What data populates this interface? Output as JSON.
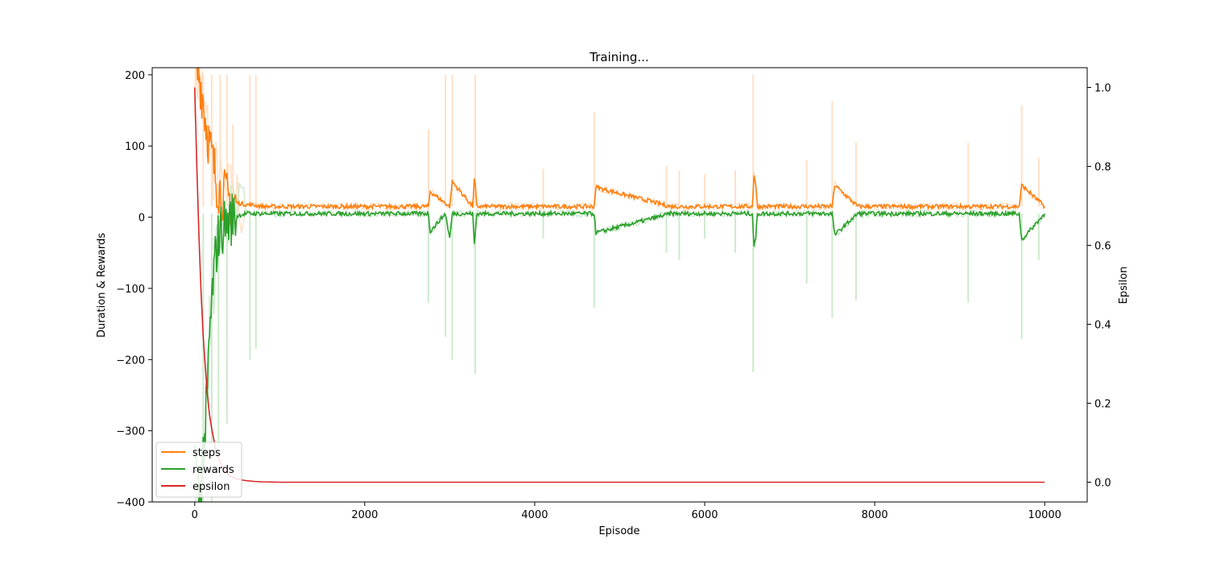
{
  "chart_data": {
    "type": "line",
    "title": "Training...",
    "xlabel": "Episode",
    "ylabel": "Duration & Rewards",
    "y2label": "Epsilon",
    "xlim": [
      -500,
      10500
    ],
    "ylim": [
      -400,
      210
    ],
    "y2lim": [
      -0.05,
      1.05
    ],
    "xticks": [
      "0",
      "2000",
      "4000",
      "6000",
      "8000",
      "10000"
    ],
    "yticks": [
      "200",
      "100",
      "0",
      "−100",
      "−200",
      "−300",
      "−400"
    ],
    "y2ticks": [
      "1.0",
      "0.8",
      "0.6",
      "0.4",
      "0.2",
      "0.0"
    ],
    "legend_position": "lower-left",
    "grid": false,
    "series": [
      {
        "name": "steps",
        "axis": "left",
        "color": "#ff7f0e",
        "raw_color": "#ffe0c7",
        "x": [
          0,
          25,
          50,
          75,
          100,
          125,
          150,
          175,
          200,
          225,
          250,
          275,
          300,
          350,
          400,
          450,
          500,
          600,
          700,
          800,
          1000,
          2000,
          2750,
          2770,
          3000,
          3030,
          3270,
          3290,
          3300,
          3320,
          4100,
          4700,
          4720,
          5600,
          6000,
          6560,
          6580,
          6600,
          6620,
          7200,
          7500,
          7530,
          7800,
          9100,
          9700,
          9730,
          10000
        ],
        "y": [
          200,
          200,
          200,
          185,
          165,
          140,
          120,
          100,
          85,
          70,
          55,
          45,
          38,
          30,
          25,
          22,
          20,
          18,
          17,
          15,
          15,
          15,
          15,
          36,
          15,
          50,
          15,
          52,
          45,
          15,
          15,
          15,
          42,
          15,
          15,
          15,
          60,
          45,
          15,
          15,
          15,
          45,
          15,
          15,
          15,
          45,
          15
        ],
        "raw_spikes_x": [
          100,
          200,
          300,
          380,
          450,
          650,
          720,
          2750,
          2950,
          3030,
          3300,
          4100,
          4700,
          5550,
          5700,
          6000,
          6360,
          6570,
          7200,
          7500,
          7780,
          9100,
          9730,
          9930
        ],
        "raw_spikes_y": [
          200,
          200,
          200,
          200,
          130,
          200,
          200,
          123,
          200,
          200,
          200,
          68,
          147,
          72,
          65,
          60,
          66,
          200,
          80,
          163,
          105,
          105,
          157,
          83
        ]
      },
      {
        "name": "rewards",
        "axis": "left",
        "color": "#2ca02c",
        "raw_color": "#cdeacd",
        "x": [
          0,
          50,
          75,
          100,
          125,
          150,
          175,
          200,
          225,
          250,
          275,
          300,
          350,
          400,
          450,
          500,
          600,
          700,
          800,
          1000,
          2000,
          2750,
          2770,
          2950,
          3000,
          3030,
          3270,
          3290,
          3320,
          4100,
          4700,
          4720,
          5600,
          6000,
          6560,
          6580,
          6600,
          6620,
          7200,
          7500,
          7530,
          7800,
          9100,
          9700,
          9730,
          10000
        ],
        "y": [
          -330,
          -400,
          -380,
          -330,
          -300,
          -240,
          -170,
          -120,
          -80,
          -50,
          -30,
          -20,
          -10,
          -5,
          0,
          2,
          5,
          5,
          5,
          5,
          5,
          5,
          -20,
          5,
          -30,
          5,
          5,
          -38,
          5,
          5,
          5,
          -22,
          5,
          5,
          5,
          -40,
          -30,
          5,
          5,
          5,
          -25,
          5,
          5,
          5,
          -32,
          5
        ],
        "raw_spikes_x": [
          100,
          200,
          280,
          380,
          650,
          720,
          2750,
          2950,
          3030,
          3300,
          4100,
          4700,
          5550,
          5700,
          6000,
          6360,
          6570,
          7200,
          7500,
          7780,
          9100,
          9730,
          9930
        ],
        "raw_spikes_y": [
          -400,
          -400,
          -330,
          -290,
          -200,
          -185,
          -120,
          -168,
          -200,
          -220,
          -30,
          -127,
          -50,
          -60,
          -30,
          -50,
          -218,
          -93,
          -142,
          -117,
          -120,
          -171,
          -60
        ]
      },
      {
        "name": "epsilon",
        "axis": "right",
        "color": "#d62728",
        "x": [
          0,
          25,
          50,
          75,
          100,
          125,
          150,
          175,
          200,
          250,
          300,
          350,
          400,
          500,
          600,
          700,
          800,
          1000,
          2000,
          4000,
          6000,
          8000,
          10000
        ],
        "y": [
          1.0,
          0.8,
          0.62,
          0.48,
          0.37,
          0.29,
          0.22,
          0.17,
          0.135,
          0.08,
          0.05,
          0.03,
          0.018,
          0.008,
          0.004,
          0.002,
          0.001,
          0.0,
          0.0,
          0.0,
          0.0,
          0.0,
          0.0
        ]
      }
    ]
  }
}
